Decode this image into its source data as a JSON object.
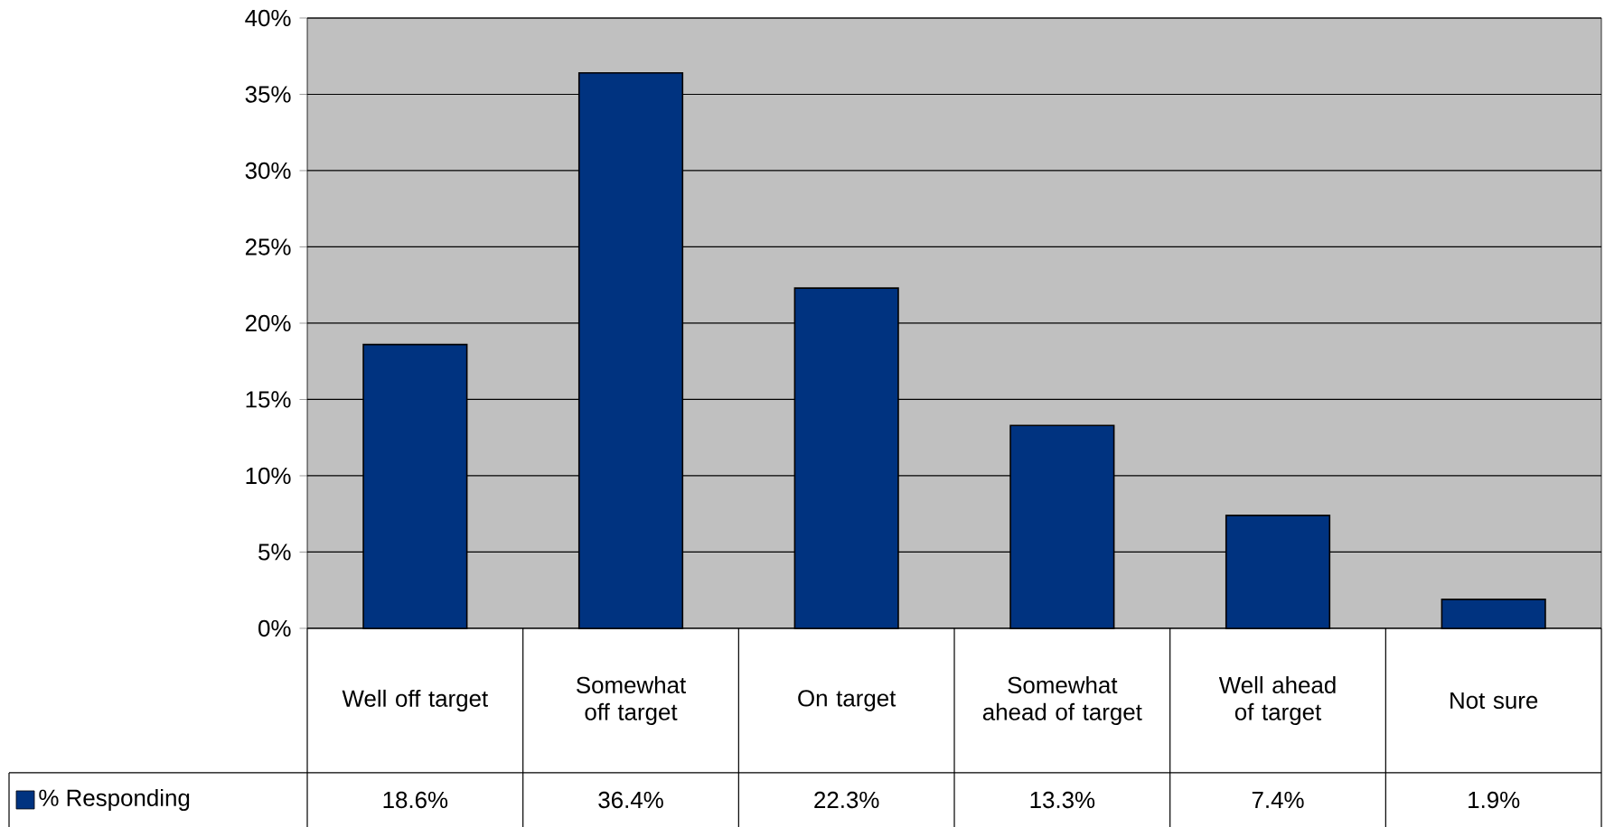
{
  "chart_data": {
    "type": "bar",
    "categories": [
      "Well off target",
      "Somewhat off target",
      "On target",
      "Somewhat ahead of target",
      "Well ahead of target",
      "Not sure"
    ],
    "series": [
      {
        "name": "% Responding",
        "color": "#003380",
        "values": [
          18.6,
          36.4,
          22.3,
          13.3,
          7.4,
          1.9
        ],
        "value_labels": [
          "18.6%",
          "36.4%",
          "22.3%",
          "13.3%",
          "7.4%",
          "1.9%"
        ]
      }
    ],
    "ylim": [
      0,
      40
    ],
    "yticks": [
      {
        "value": 0,
        "label": "0%"
      },
      {
        "value": 5,
        "label": "5%"
      },
      {
        "value": 10,
        "label": "10%"
      },
      {
        "value": 15,
        "label": "15%"
      },
      {
        "value": 20,
        "label": "20%"
      },
      {
        "value": 25,
        "label": "25%"
      },
      {
        "value": 30,
        "label": "30%"
      },
      {
        "value": 35,
        "label": "35%"
      },
      {
        "value": 40,
        "label": "40%"
      }
    ],
    "grid": "y",
    "legend": "bottom left"
  }
}
